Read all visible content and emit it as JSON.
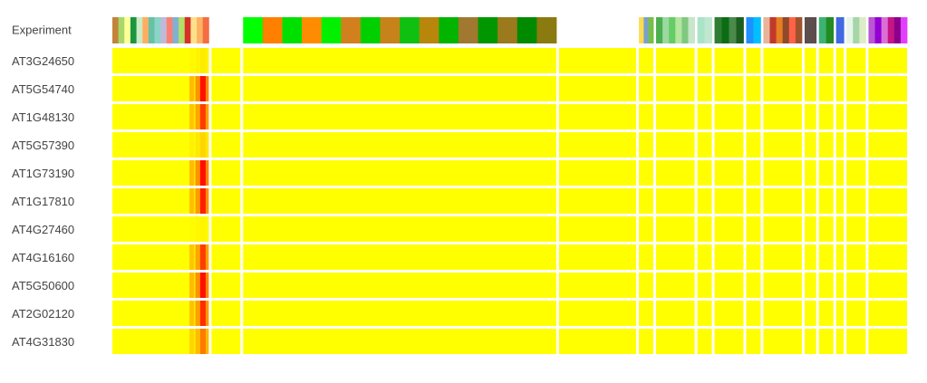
{
  "chart_data": {
    "type": "heatmap",
    "header_row_label": "Experiment",
    "rows": [
      {
        "gene": "AT3G24650",
        "hot_level": 0.1
      },
      {
        "gene": "AT5G54740",
        "hot_level": 0.95
      },
      {
        "gene": "AT1G48130",
        "hot_level": 0.8
      },
      {
        "gene": "AT5G57390",
        "hot_level": 0.2
      },
      {
        "gene": "AT1G73190",
        "hot_level": 0.95
      },
      {
        "gene": "AT1G17810",
        "hot_level": 0.9
      },
      {
        "gene": "AT4G27460",
        "hot_level": 0.05
      },
      {
        "gene": "AT4G16160",
        "hot_level": 0.8
      },
      {
        "gene": "AT5G50600",
        "hot_level": 0.95
      },
      {
        "gene": "AT2G02120",
        "hot_level": 0.85
      },
      {
        "gene": "AT4G31830",
        "hot_level": 0.6
      }
    ],
    "color_scale": {
      "low": "#ffff00",
      "mid": "#ff9900",
      "high": "#ff0000"
    },
    "experiment_groups": [
      {
        "span": 0.1,
        "header_colors": [
          "#c4833a",
          "#a6d96a",
          "#ffff99",
          "#1a9641",
          "#ccebc5",
          "#fdae61",
          "#66c2a5",
          "#8dd3c7",
          "#bebada",
          "#fb8072",
          "#80b1d3",
          "#b3de69",
          "#d73027",
          "#fee08b",
          "#fdb462",
          "#f46d43"
        ]
      },
      {
        "span": 0.03,
        "header_colors": [
          "#ffffff"
        ]
      },
      {
        "span": 0.325,
        "header_colors": [
          "#00ff00",
          "#ff7f00",
          "#00e000",
          "#ff8c00",
          "#00f000",
          "#d2801e",
          "#00d000",
          "#c8821a",
          "#10c010",
          "#b8860b",
          "#00b400",
          "#a07830",
          "#009600",
          "#9a7a1c",
          "#008a00",
          "#8a7a10"
        ]
      },
      {
        "span": 0.08,
        "header_colors": [
          "#ffffff"
        ]
      },
      {
        "span": 0.015,
        "header_colors": [
          "#fddc50",
          "#7aa2c8",
          "#76c043"
        ]
      },
      {
        "span": 0.04,
        "header_colors": [
          "#4caf50",
          "#9ad9a0",
          "#66cc66",
          "#b4e6a0",
          "#80c880",
          "#c8e6c9"
        ]
      },
      {
        "span": 0.015,
        "header_colors": [
          "#aae4c8",
          "#c0e8d0"
        ]
      },
      {
        "span": 0.03,
        "header_colors": [
          "#2e7d32",
          "#0a6d14",
          "#4a8a4a",
          "#1b5e20"
        ]
      },
      {
        "span": 0.015,
        "header_colors": [
          "#1e90ff",
          "#00bfff"
        ]
      },
      {
        "span": 0.04,
        "header_colors": [
          "#e9b49a",
          "#c0392b",
          "#e67e22",
          "#8e4a2a",
          "#ff6347",
          "#a0522d"
        ]
      },
      {
        "span": 0.012,
        "header_colors": [
          "#5d4d4d"
        ]
      },
      {
        "span": 0.015,
        "header_colors": [
          "#3cb371",
          "#228b22"
        ]
      },
      {
        "span": 0.008,
        "header_colors": [
          "#4169e1"
        ]
      },
      {
        "span": 0.02,
        "header_colors": [
          "#e8f5e9",
          "#a5d6a7",
          "#dcedc8"
        ]
      },
      {
        "span": 0.04,
        "header_colors": [
          "#ba55d3",
          "#9400d3",
          "#da70d6",
          "#c71585",
          "#8b008b",
          "#e040fb"
        ]
      }
    ]
  }
}
